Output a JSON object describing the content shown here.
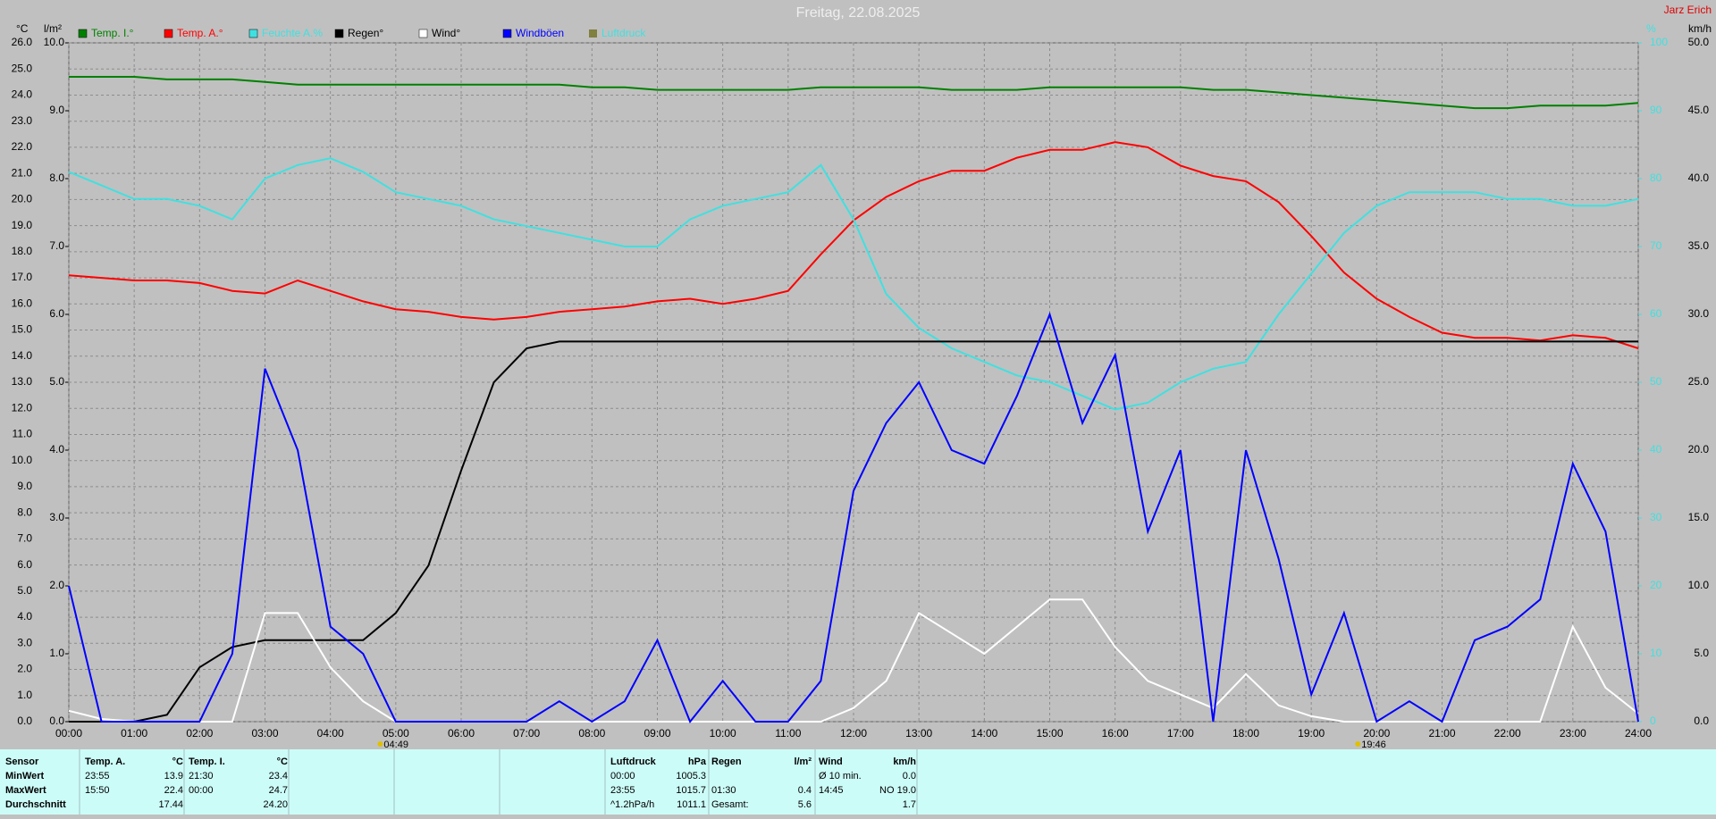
{
  "chart_data": {
    "type": "line",
    "title": "Freitag, 22.08.2025",
    "subtitle": "Jarz Erich",
    "y_unit": "°C",
    "y3_unit": "l/m²",
    "y2_unit": "km/h",
    "y4_unit": "%",
    "x": [
      0,
      0.5,
      1,
      1.5,
      2,
      2.5,
      3,
      3.5,
      4,
      4.5,
      5,
      5.5,
      6,
      6.5,
      7,
      7.5,
      8,
      8.5,
      9,
      9.5,
      10,
      10.5,
      11,
      11.5,
      12,
      12.5,
      13,
      13.5,
      14,
      14.5,
      15,
      15.5,
      16,
      16.5,
      17,
      17.5,
      18,
      18.5,
      19,
      19.5,
      20,
      20.5,
      21,
      21.5,
      22,
      22.5,
      23,
      23.5,
      24
    ],
    "xlim": [
      0,
      24
    ],
    "xticks": [
      {
        "value": 0,
        "label": "00:00"
      },
      {
        "value": 1,
        "label": "01:00"
      },
      {
        "value": 2,
        "label": "02:00"
      },
      {
        "value": 3,
        "label": "03:00"
      },
      {
        "value": 4,
        "label": "04:00"
      },
      {
        "value": 5,
        "label": "05:00"
      },
      {
        "value": 6,
        "label": "06:00"
      },
      {
        "value": 7,
        "label": "07:00"
      },
      {
        "value": 8,
        "label": "08:00"
      },
      {
        "value": 9,
        "label": "09:00"
      },
      {
        "value": 10,
        "label": "10:00"
      },
      {
        "value": 11,
        "label": "11:00"
      },
      {
        "value": 12,
        "label": "12:00"
      },
      {
        "value": 13,
        "label": "13:00"
      },
      {
        "value": 14,
        "label": "14:00"
      },
      {
        "value": 15,
        "label": "15:00"
      },
      {
        "value": 16,
        "label": "16:00"
      },
      {
        "value": 17,
        "label": "17:00"
      },
      {
        "value": 18,
        "label": "18:00"
      },
      {
        "value": 19,
        "label": "19:00"
      },
      {
        "value": 20,
        "label": "20:00"
      },
      {
        "value": 21,
        "label": "21:00"
      },
      {
        "value": 22,
        "label": "22:00"
      },
      {
        "value": 23,
        "label": "23:00"
      },
      {
        "value": 24,
        "label": "24:00"
      }
    ],
    "ylim": [
      0,
      26
    ],
    "yticks": [
      {
        "value": 0,
        "label": "0.0"
      },
      {
        "value": 1,
        "label": "1.0"
      },
      {
        "value": 2,
        "label": "2.0"
      },
      {
        "value": 3,
        "label": "3.0"
      },
      {
        "value": 4,
        "label": "4.0"
      },
      {
        "value": 5,
        "label": "5.0"
      },
      {
        "value": 6,
        "label": "6.0"
      },
      {
        "value": 7,
        "label": "7.0"
      },
      {
        "value": 8,
        "label": "8.0"
      },
      {
        "value": 9,
        "label": "9.0"
      },
      {
        "value": 10,
        "label": "10.0"
      },
      {
        "value": 11,
        "label": "11.0"
      },
      {
        "value": 12,
        "label": "12.0"
      },
      {
        "value": 13,
        "label": "13.0"
      },
      {
        "value": 14,
        "label": "14.0"
      },
      {
        "value": 15,
        "label": "15.0"
      },
      {
        "value": 16,
        "label": "16.0"
      },
      {
        "value": 17,
        "label": "17.0"
      },
      {
        "value": 18,
        "label": "18.0"
      },
      {
        "value": 19,
        "label": "19.0"
      },
      {
        "value": 20,
        "label": "20.0"
      },
      {
        "value": 21,
        "label": "21.0"
      },
      {
        "value": 22,
        "label": "22.0"
      },
      {
        "value": 23,
        "label": "23.0"
      },
      {
        "value": 24,
        "label": "24.0"
      },
      {
        "value": 25,
        "label": "25.0"
      },
      {
        "value": 26,
        "label": "26.0"
      }
    ],
    "y3lim": [
      0,
      10
    ],
    "y3ticks": [
      {
        "value": 0,
        "label": "0.0"
      },
      {
        "value": 1,
        "label": "1.0"
      },
      {
        "value": 2,
        "label": "2.0"
      },
      {
        "value": 3,
        "label": "3.0"
      },
      {
        "value": 4,
        "label": "4.0"
      },
      {
        "value": 5,
        "label": "5.0"
      },
      {
        "value": 6,
        "label": "6.0"
      },
      {
        "value": 7,
        "label": "7.0"
      },
      {
        "value": 8,
        "label": "8.0"
      },
      {
        "value": 9,
        "label": "9.0"
      },
      {
        "value": 10,
        "label": "10.0"
      }
    ],
    "y2lim": [
      0,
      50
    ],
    "y2ticks": [
      {
        "value": 0,
        "label": "0.0"
      },
      {
        "value": 5,
        "label": "5.0"
      },
      {
        "value": 10,
        "label": "10.0"
      },
      {
        "value": 15,
        "label": "15.0"
      },
      {
        "value": 20,
        "label": "20.0"
      },
      {
        "value": 25,
        "label": "25.0"
      },
      {
        "value": 30,
        "label": "30.0"
      },
      {
        "value": 35,
        "label": "35.0"
      },
      {
        "value": 40,
        "label": "40.0"
      },
      {
        "value": 45,
        "label": "45.0"
      },
      {
        "value": 50,
        "label": "50.0"
      }
    ],
    "y4lim": [
      0,
      100
    ],
    "y4ticks": [
      0,
      10,
      20,
      30,
      40,
      50,
      60,
      70,
      80,
      90,
      100
    ],
    "grid": true,
    "series": [
      {
        "name": "Temp. I.°",
        "color": "#008000",
        "axis": "y",
        "values": [
          24.7,
          24.7,
          24.7,
          24.6,
          24.6,
          24.6,
          24.5,
          24.4,
          24.4,
          24.4,
          24.4,
          24.4,
          24.4,
          24.4,
          24.4,
          24.4,
          24.3,
          24.3,
          24.2,
          24.2,
          24.2,
          24.2,
          24.2,
          24.3,
          24.3,
          24.3,
          24.3,
          24.2,
          24.2,
          24.2,
          24.3,
          24.3,
          24.3,
          24.3,
          24.3,
          24.2,
          24.2,
          24.1,
          24.0,
          23.9,
          23.8,
          23.7,
          23.6,
          23.5,
          23.5,
          23.6,
          23.6,
          23.6,
          23.7
        ]
      },
      {
        "name": "Temp. A.°",
        "color": "#ff0000",
        "axis": "y",
        "values": [
          17.1,
          17.0,
          16.9,
          16.9,
          16.8,
          16.5,
          16.4,
          16.9,
          16.5,
          16.1,
          15.8,
          15.7,
          15.5,
          15.4,
          15.5,
          15.7,
          15.8,
          15.9,
          16.1,
          16.2,
          16.0,
          16.2,
          16.5,
          17.9,
          19.2,
          20.1,
          20.7,
          21.1,
          21.1,
          21.6,
          21.9,
          21.9,
          22.2,
          22.0,
          21.3,
          20.9,
          20.7,
          19.9,
          18.6,
          17.2,
          16.2,
          15.5,
          14.9,
          14.7,
          14.7,
          14.6,
          14.8,
          14.7,
          14.3
        ]
      },
      {
        "name": "Feuchte A.%",
        "color": "#40e0e0",
        "axis": "y4",
        "values": [
          81,
          79,
          77,
          77,
          76,
          74,
          80,
          82,
          83,
          81,
          78,
          77,
          76,
          74,
          73,
          72,
          71,
          70,
          70,
          74,
          76,
          77,
          78,
          82,
          74,
          63,
          58,
          55,
          53,
          51,
          50,
          48,
          46,
          47,
          50,
          52,
          53,
          60,
          66,
          72,
          76,
          78,
          78,
          78,
          77,
          77,
          76,
          76,
          77
        ]
      },
      {
        "name": "Regen°",
        "color": "#000000",
        "axis": "y3",
        "values": [
          0,
          0,
          0,
          0.1,
          0.8,
          1.1,
          1.2,
          1.2,
          1.2,
          1.2,
          1.6,
          2.3,
          3.7,
          5.0,
          5.5,
          5.6,
          5.6,
          5.6,
          5.6,
          5.6,
          5.6,
          5.6,
          5.6,
          5.6,
          5.6,
          5.6,
          5.6,
          5.6,
          5.6,
          5.6,
          5.6,
          5.6,
          5.6,
          5.6,
          5.6,
          5.6,
          5.6,
          5.6,
          5.6,
          5.6,
          5.6,
          5.6,
          5.6,
          5.6,
          5.6,
          5.6,
          5.6,
          5.6,
          5.6
        ]
      },
      {
        "name": "Wind°",
        "color": "#ffffff",
        "axis": "y2",
        "values": [
          0.8,
          0.2,
          0,
          0,
          0,
          0,
          8,
          8,
          4,
          1.5,
          0,
          0,
          0,
          0,
          0,
          0,
          0,
          0,
          0,
          0,
          0,
          0,
          0,
          0,
          1,
          3,
          8,
          6.5,
          5,
          7,
          9,
          9,
          5.5,
          3,
          2,
          1,
          3.5,
          1.2,
          0.4,
          0,
          0,
          0,
          0,
          0,
          0,
          0,
          7,
          2.5,
          0.6
        ]
      },
      {
        "name": "Windböen",
        "color": "#0000ff",
        "axis": "y2",
        "values": [
          10,
          0,
          0,
          0,
          0,
          5,
          26,
          20,
          7,
          5,
          0,
          0,
          0,
          0,
          0,
          1.5,
          0,
          1.5,
          6,
          0,
          3,
          0,
          0,
          3,
          17,
          22,
          25,
          20,
          19,
          24,
          30,
          22,
          27,
          14,
          20,
          0,
          20,
          12,
          2,
          8,
          0,
          1.5,
          0,
          6,
          7,
          9,
          19,
          14,
          0
        ]
      }
    ],
    "legend_only": [
      {
        "name": "Luftdruck",
        "color": "#808040"
      }
    ],
    "annotations": [
      {
        "x": 4.8167,
        "label": "04:49"
      },
      {
        "x": 19.7667,
        "label": "19:46"
      }
    ]
  },
  "table": {
    "groups": [
      {
        "header": [
          "Sensor",
          null
        ],
        "rows": [
          [
            "MinWert",
            null
          ],
          [
            "MaxWert",
            null
          ],
          [
            "Durchschnitt",
            null
          ]
        ]
      },
      {
        "header": [
          "Temp. A.",
          "°C"
        ],
        "rows": [
          [
            "23:55",
            "13.9"
          ],
          [
            "15:50",
            "22.4"
          ],
          [
            null,
            "17.44"
          ]
        ]
      },
      {
        "header": [
          "Temp. I.",
          "°C"
        ],
        "rows": [
          [
            "21:30",
            "23.4"
          ],
          [
            "00:00",
            "24.7"
          ],
          [
            null,
            "24.20"
          ]
        ]
      },
      {
        "header": [
          "Luftdruck",
          "hPa"
        ],
        "rows": [
          [
            "00:00",
            "1005.3"
          ],
          [
            "23:55",
            "1015.7"
          ],
          [
            "^1.2hPa/h",
            "1011.1"
          ]
        ]
      },
      {
        "header": [
          "Regen",
          "l/m²"
        ],
        "rows": [
          [
            null,
            null
          ],
          [
            "01:30",
            "0.4"
          ],
          [
            "Gesamt:",
            "5.6"
          ]
        ]
      },
      {
        "header": [
          "Wind",
          "km/h"
        ],
        "rows": [
          [
            "Ø 10 min.",
            "0.0"
          ],
          [
            "14:45",
            "NO 19.0"
          ],
          [
            null,
            "1.7"
          ]
        ]
      }
    ]
  }
}
